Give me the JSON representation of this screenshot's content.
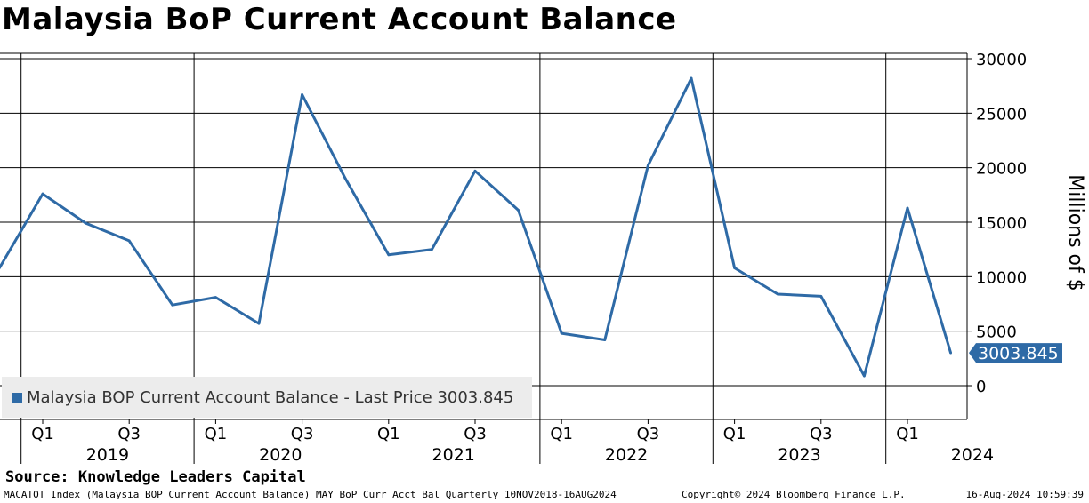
{
  "header": {
    "title": "Malaysia BoP Current Account Balance"
  },
  "legend": {
    "text": "Malaysia BOP Current Account Balance  - Last Price 3003.845"
  },
  "source": "Source: Knowledge Leaders Capital",
  "footer": {
    "left": "MACATOT Index (Malaysia BOP Current Account Balance) MAY BoP Curr Acct Bal  Quarterly 10NOV2018-16AUG2024",
    "middle": "Copyright© 2024 Bloomberg Finance L.P.",
    "right": "16-Aug-2024 10:59:39"
  },
  "colors": {
    "series": "#2e6aa6",
    "grid": "#000000",
    "legend_bg": "#ececec"
  },
  "chart_data": {
    "type": "line",
    "title": "Malaysia BoP Current Account Balance",
    "ylabel": "Millions of $",
    "xlabel": "",
    "ylim": [
      -3000,
      30500
    ],
    "yticks": [
      0,
      5000,
      10000,
      15000,
      20000,
      25000,
      30000
    ],
    "years": [
      "2019",
      "2020",
      "2021",
      "2022",
      "2023",
      "2024"
    ],
    "quarter_labels": [
      "Q1",
      "Q3",
      "Q1",
      "Q3",
      "Q1",
      "Q3",
      "Q1",
      "Q3",
      "Q1",
      "Q3",
      "Q1"
    ],
    "series": [
      {
        "name": "Malaysia BOP Current Account Balance",
        "x": [
          "2018-Q4",
          "2019-Q1",
          "2019-Q2",
          "2019-Q3",
          "2019-Q4",
          "2020-Q1",
          "2020-Q2",
          "2020-Q3",
          "2020-Q4",
          "2021-Q1",
          "2021-Q2",
          "2021-Q3",
          "2021-Q4",
          "2022-Q1",
          "2022-Q2",
          "2022-Q3",
          "2022-Q4",
          "2023-Q1",
          "2023-Q2",
          "2023-Q3",
          "2023-Q4",
          "2024-Q1",
          "2024-Q2"
        ],
        "values": [
          10800,
          17600,
          14900,
          13300,
          7400,
          8100,
          5700,
          26700,
          19000,
          12000,
          12500,
          19700,
          16100,
          4800,
          4200,
          20200,
          28200,
          10800,
          8400,
          8200,
          900,
          16300,
          3003.845
        ]
      }
    ],
    "last_price_label": "3003.845",
    "last_price": 3003.845
  }
}
